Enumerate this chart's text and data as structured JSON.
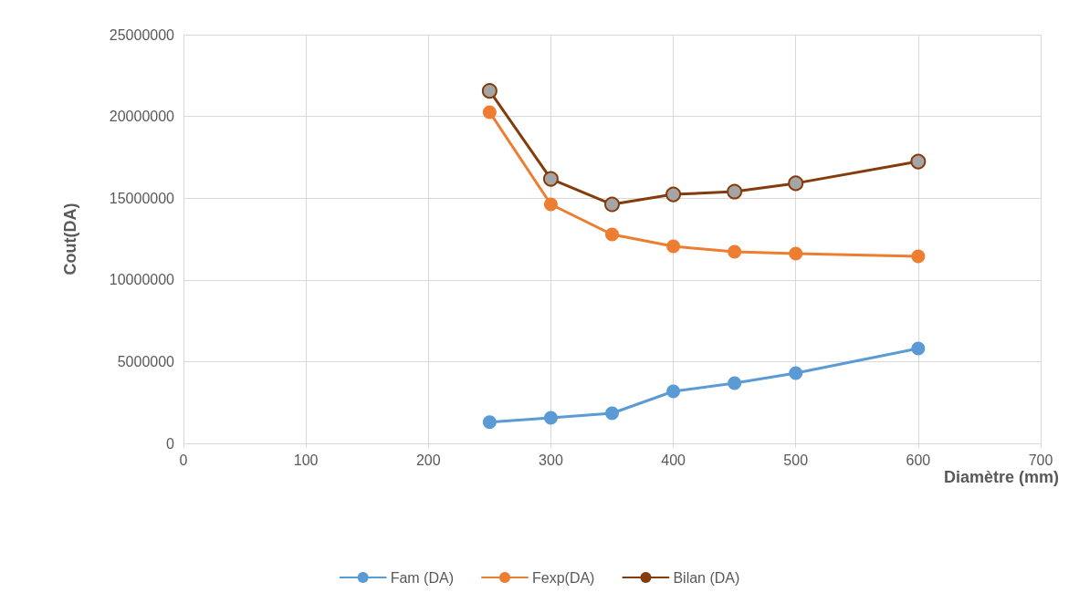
{
  "chart_data": {
    "type": "line",
    "xlabel": "Diamètre (mm)",
    "ylabel": "Cout(DA)",
    "x": [
      250,
      300,
      350,
      400,
      450,
      500,
      600
    ],
    "series": [
      {
        "name": "Fam (DA)",
        "color": "#5b9bd5",
        "values": [
          1300000,
          1560000,
          1840000,
          3180000,
          3680000,
          4300000,
          5800000
        ]
      },
      {
        "name": "Fexp(DA)",
        "color": "#ed7d31",
        "values": [
          20260000,
          14620000,
          12780000,
          12050000,
          11720000,
          11610000,
          11440000
        ]
      },
      {
        "name": "Bilan (DA)",
        "color": "#843c0c",
        "colors": [
          "#a5a5a5",
          "#a5a5a5",
          "#a5a5a5",
          "#a5a5a5",
          "#a5a5a5",
          "#a5a5a5",
          "#a5a5a5"
        ],
        "values": [
          21560000,
          16180000,
          14620000,
          15230000,
          15400000,
          15910000,
          17240000
        ]
      }
    ],
    "xlim": [
      0,
      700
    ],
    "xticks": [
      0,
      100,
      200,
      300,
      400,
      500,
      600,
      700
    ],
    "ylim": [
      0,
      25000000
    ],
    "yticks": [
      0,
      5000000,
      10000000,
      15000000,
      20000000,
      25000000
    ],
    "grid": true,
    "legend": "bottom",
    "marker": "circle",
    "line_style": "solid"
  }
}
